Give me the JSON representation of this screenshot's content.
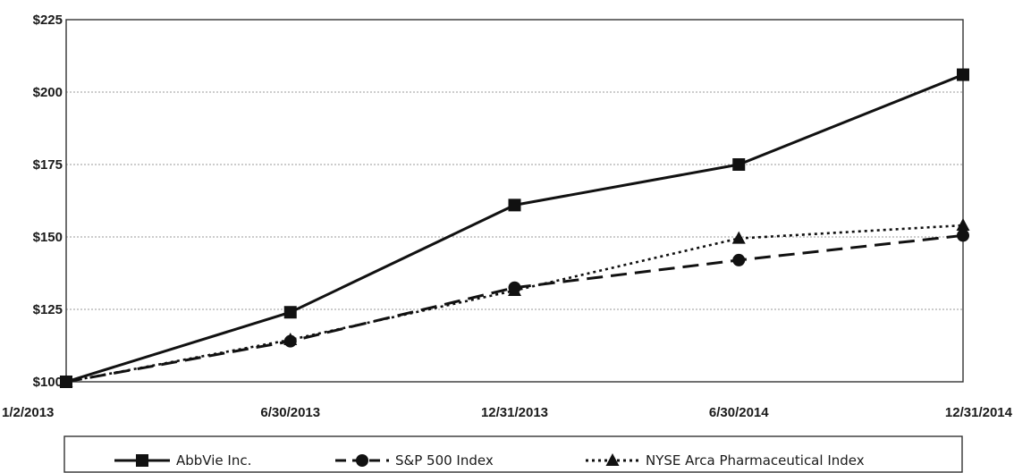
{
  "chart_data": {
    "type": "line",
    "x": [
      "1/2/2013",
      "6/30/2013",
      "12/31/2013",
      "6/30/2014",
      "12/31/2014"
    ],
    "ylim": [
      100,
      225
    ],
    "yticks": [
      "$100",
      "$125",
      "$150",
      "$175",
      "$200",
      "$225"
    ],
    "ytick_values": [
      100,
      125,
      150,
      175,
      200,
      225
    ],
    "grid": "horizontal dotted",
    "legend_position": "bottom",
    "series": [
      {
        "name": "AbbVie Inc.",
        "values": [
          100,
          124,
          161,
          175,
          206
        ],
        "marker": "square",
        "dash": "solid",
        "color": "#111111"
      },
      {
        "name": "S&P 500 Index",
        "values": [
          100,
          114,
          132.5,
          142,
          150.5
        ],
        "marker": "circle",
        "dash": "dashed",
        "color": "#111111"
      },
      {
        "name": "NYSE Arca Pharmaceutical Index",
        "values": [
          100,
          114.5,
          131.5,
          149.5,
          154
        ],
        "marker": "triangle",
        "dash": "dotted",
        "color": "#111111"
      }
    ]
  }
}
